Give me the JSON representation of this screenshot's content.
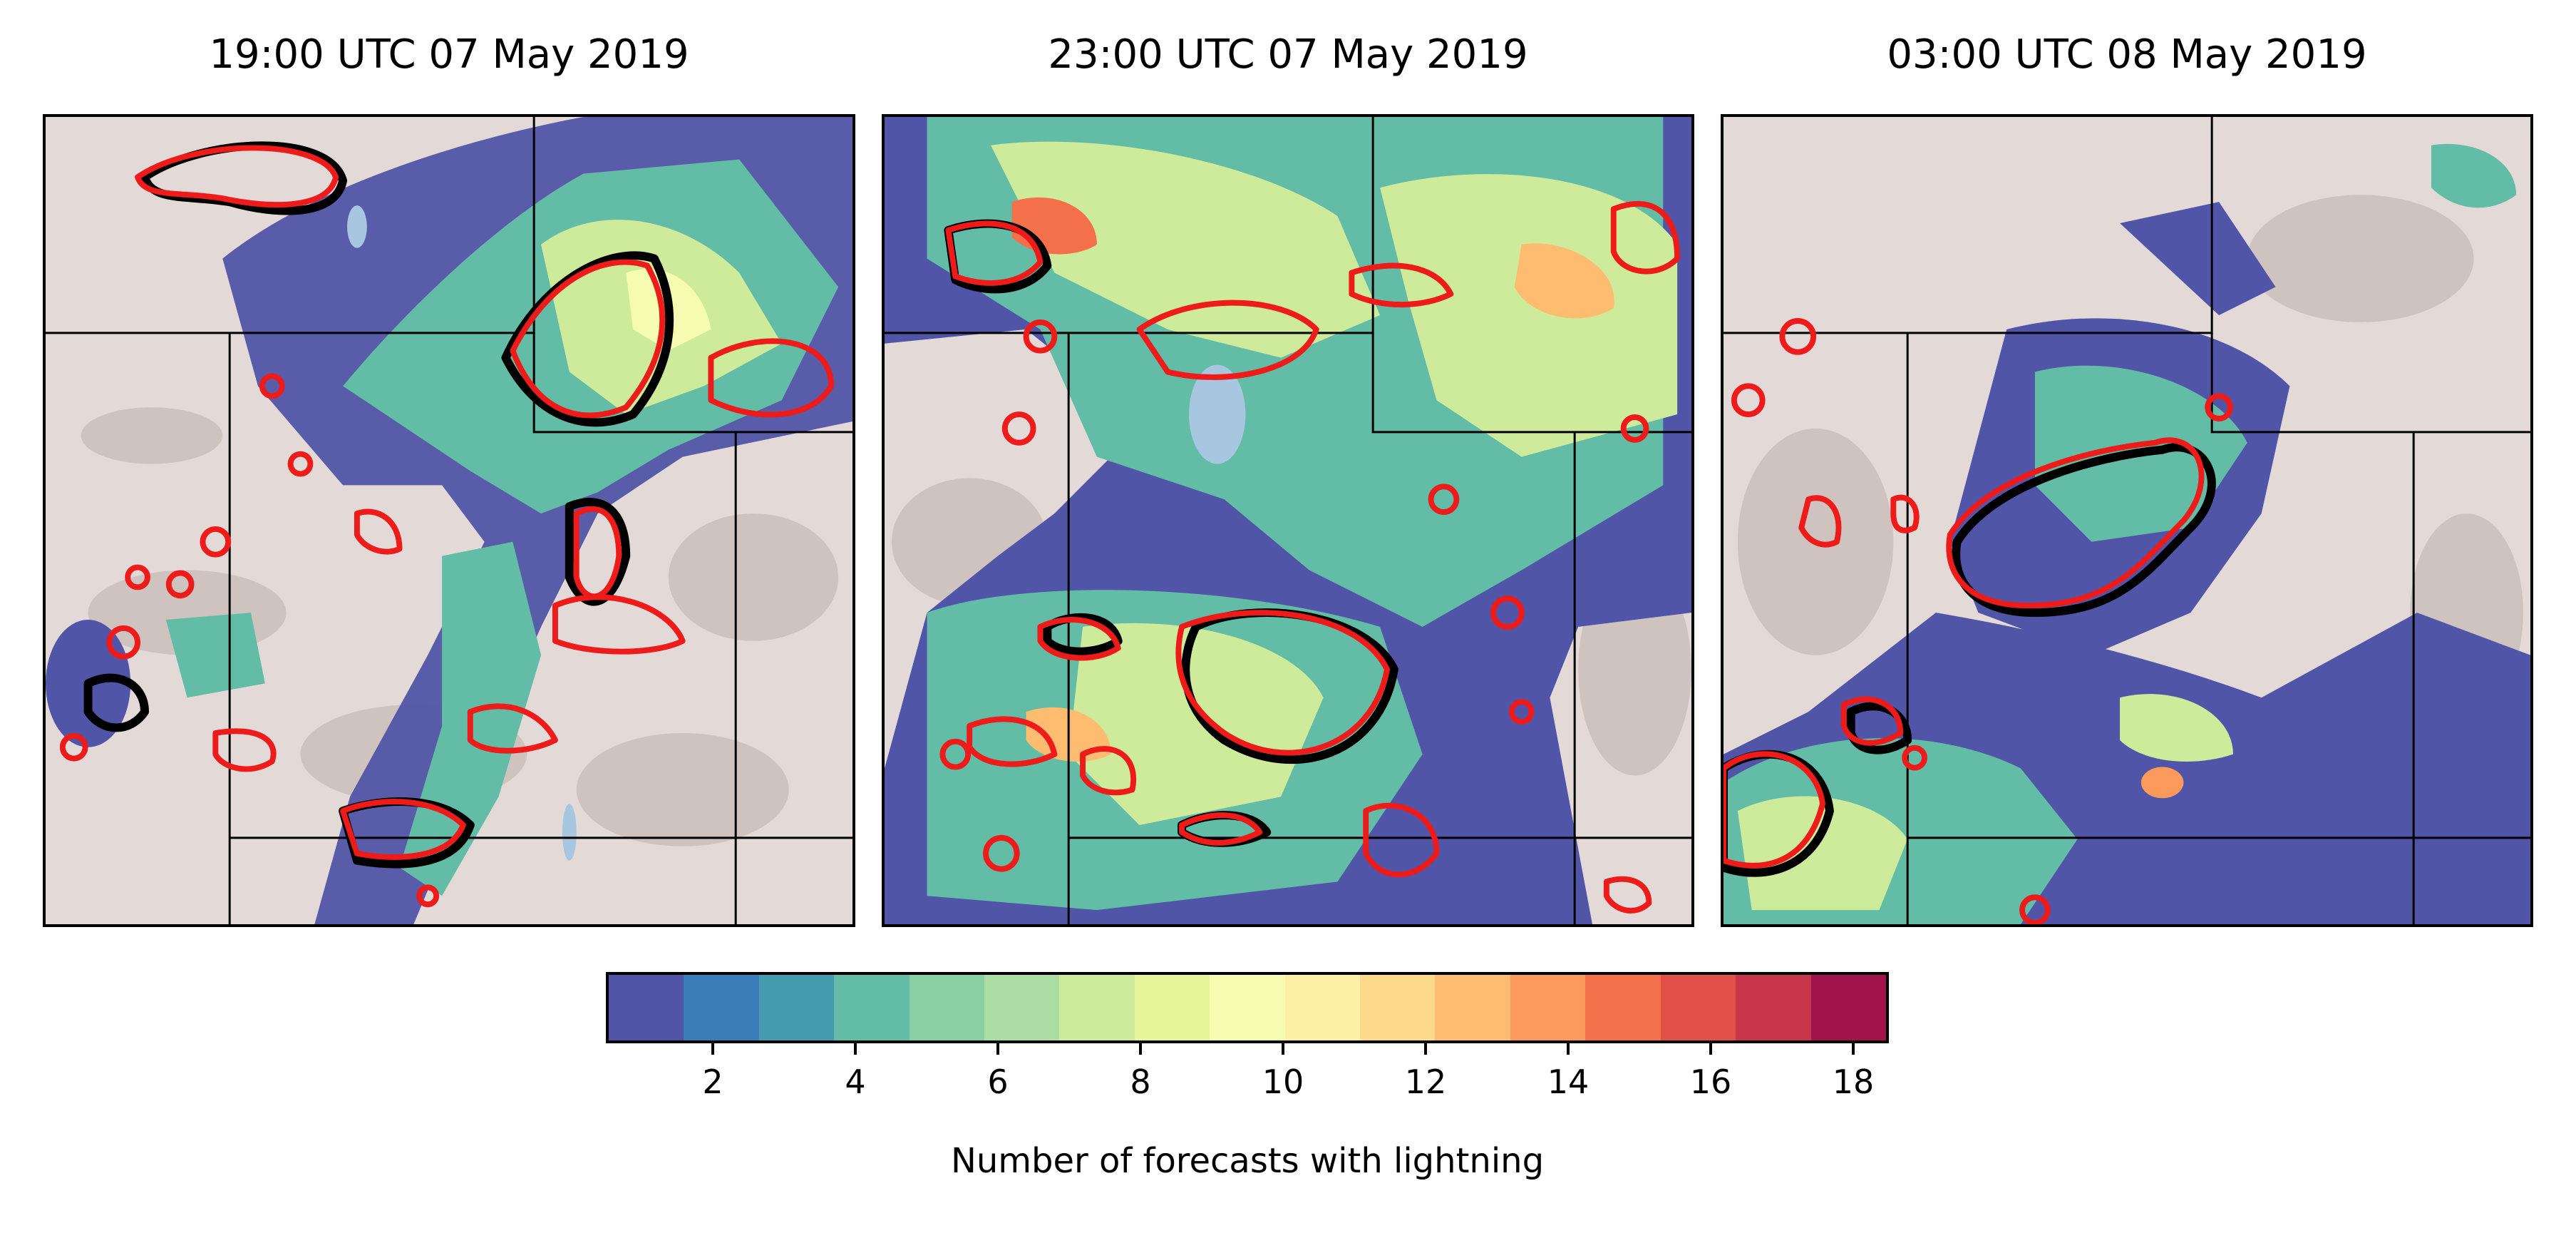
{
  "panels": [
    {
      "title": "19:00 UTC 07 May 2019"
    },
    {
      "title": "23:00 UTC 07 May 2019"
    },
    {
      "title": "03:00 UTC 08 May 2019"
    }
  ],
  "colorbar": {
    "label": "Number of forecasts with lightning",
    "min": 0.5,
    "max": 18.5,
    "ticks": [
      2,
      4,
      6,
      8,
      10,
      12,
      14,
      16,
      18
    ],
    "colors": [
      "#5155a7",
      "#3a7db8",
      "#449daf",
      "#62bca6",
      "#88cfa4",
      "#aadca3",
      "#cdeb9b",
      "#e6f599",
      "#f5fbb0",
      "#fbf0a3",
      "#fdd98a",
      "#fdbc6f",
      "#fb9a5b",
      "#f4704a",
      "#e2504a",
      "#c8364c",
      "#a0134b"
    ]
  },
  "map_colors": {
    "terrain": "#e3dad8",
    "relief": "#b9aba4",
    "water": "#a7c6e0",
    "boundary": "#000000",
    "observed_contour": "#000000",
    "forecast_contour": "#ee1b1b"
  }
}
